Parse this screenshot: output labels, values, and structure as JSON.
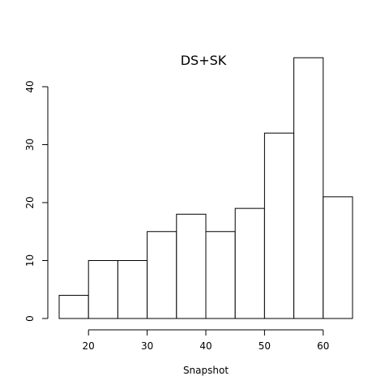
{
  "chart_data": {
    "type": "bar",
    "title": "DS+SK",
    "xlabel": "Snapshot",
    "ylabel": "",
    "bins": [
      {
        "start": 15,
        "end": 20,
        "count": 4
      },
      {
        "start": 20,
        "end": 25,
        "count": 10
      },
      {
        "start": 25,
        "end": 30,
        "count": 10
      },
      {
        "start": 30,
        "end": 35,
        "count": 15
      },
      {
        "start": 35,
        "end": 40,
        "count": 18
      },
      {
        "start": 40,
        "end": 45,
        "count": 15
      },
      {
        "start": 45,
        "end": 50,
        "count": 19
      },
      {
        "start": 50,
        "end": 55,
        "count": 32
      },
      {
        "start": 55,
        "end": 60,
        "count": 45
      },
      {
        "start": 60,
        "end": 65,
        "count": 21
      }
    ],
    "xlim": [
      15,
      65
    ],
    "ylim": [
      0,
      45
    ],
    "x_ticks": [
      20,
      30,
      40,
      50,
      60
    ],
    "y_ticks": [
      0,
      10,
      20,
      30,
      40
    ],
    "grid": false
  }
}
